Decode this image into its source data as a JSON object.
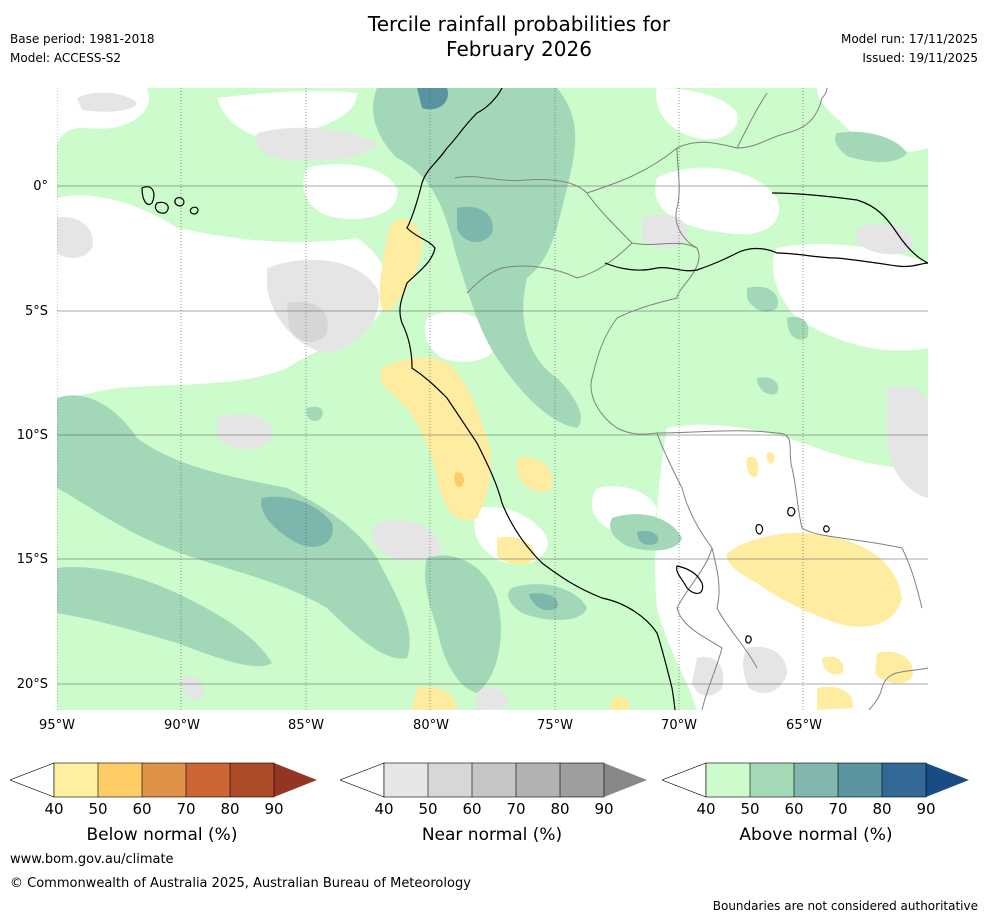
{
  "header": {
    "title_line1": "Tercile rainfall probabilities for",
    "title_line2": "February 2026",
    "base_period": "Base period: 1981-2018",
    "model": "Model: ACCESS-S2",
    "model_run": "Model run: 17/11/2025",
    "issued": "Issued: 19/11/2025"
  },
  "map": {
    "lat_ticks": [
      "0°",
      "5°S",
      "10°S",
      "15°S",
      "20°S"
    ],
    "lon_ticks": [
      "95°W",
      "90°W",
      "85°W",
      "80°W",
      "75°W",
      "70°W",
      "65°W"
    ],
    "colors": {
      "above_40": "#ccfccc",
      "above_50": "#a2d7b7",
      "above_60": "#7db6ad",
      "above_70": "#5894a0",
      "near_40": "#e5e5e5",
      "near_50": "#d6d6d6",
      "below_40": "#feeca0",
      "below_50": "#fdcc67",
      "below_60": "#e39146",
      "coast": "#000000",
      "border": "#808080",
      "grid": "#555555"
    }
  },
  "colorbars": {
    "ticks": [
      "40",
      "50",
      "60",
      "70",
      "80",
      "90"
    ],
    "below": {
      "label": "Below normal (%)",
      "colors": [
        "#fff0a0",
        "#fecd65",
        "#e09148",
        "#cd6535",
        "#ad4a28",
        "#943522"
      ]
    },
    "near": {
      "label": "Near normal (%)",
      "colors": [
        "#e6e6e6",
        "#d7d7d7",
        "#c5c5c5",
        "#b2b2b2",
        "#9e9e9e",
        "#888888"
      ]
    },
    "above": {
      "label": "Above normal (%)",
      "colors": [
        "#ccfccc",
        "#a5d9b5",
        "#81b7ae",
        "#5b949f",
        "#336897",
        "#184c82"
      ]
    }
  },
  "footer": {
    "website": "www.bom.gov.au/climate",
    "copyright": "© Commonwealth of Australia 2025, Australian Bureau of Meteorology",
    "disclaimer": "Boundaries are not considered authoritative"
  }
}
